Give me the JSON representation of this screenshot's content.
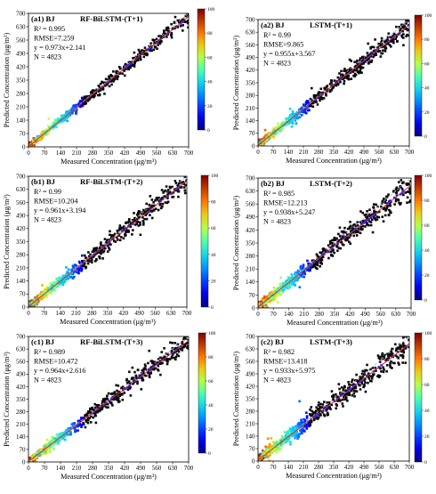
{
  "figure": {
    "axes_common": {
      "xlabel": "Measured Concentration (μg/m³)",
      "ylabel": "Predicted Concentration (μg/m³)",
      "xlim": [
        0,
        700
      ],
      "ylim": [
        0,
        700
      ],
      "ticks": [
        "0",
        "70",
        "140",
        "210",
        "280",
        "350",
        "420",
        "490",
        "560",
        "630",
        "700"
      ],
      "colorbar_range": [
        0,
        100
      ],
      "colorbar_ticks": [
        "0",
        "20",
        "40",
        "60",
        "80",
        "100"
      ],
      "fit_line_color": "#d62728",
      "identity_line_color": "#aaaaaa"
    }
  },
  "chart_data": [
    {
      "type": "scatter",
      "panel_label": "(a1) BJ",
      "model": "RF-BiLSTM-(T+1)",
      "r2": "R² = 0.995",
      "rmse": "RMSE=7.259",
      "fit": "y = 0.973x+2.141",
      "n": "N = 4823",
      "slope": 0.973,
      "intercept": 2.141,
      "scatter": 10,
      "xlim": [
        0,
        700
      ],
      "ylim": [
        0,
        700
      ]
    },
    {
      "type": "scatter",
      "panel_label": "(a2) BJ",
      "model": "LSTM-(T+1)",
      "r2": "R² = 0.99",
      "rmse": "RMSE=9.865",
      "fit": "y = 0.955x+3.567",
      "n": "N = 4823",
      "slope": 0.955,
      "intercept": 3.567,
      "scatter": 14,
      "xlim": [
        0,
        700
      ],
      "ylim": [
        0,
        700
      ]
    },
    {
      "type": "scatter",
      "panel_label": "(b1) BJ",
      "model": "RF-BiLSTM-(T+2)",
      "r2": "R² = 0.99",
      "rmse": "RMSE=10.204",
      "fit": "y = 0.961x+3.194",
      "n": "N = 4823",
      "slope": 0.961,
      "intercept": 3.194,
      "scatter": 15,
      "xlim": [
        0,
        700
      ],
      "ylim": [
        0,
        700
      ]
    },
    {
      "type": "scatter",
      "panel_label": "(b2) BJ",
      "model": "LSTM-(T+2)",
      "r2": "R² = 0.985",
      "rmse": "RMSE=12.213",
      "fit": "y = 0.938x+5.247",
      "n": "N = 4823",
      "slope": 0.938,
      "intercept": 5.247,
      "scatter": 18,
      "xlim": [
        0,
        700
      ],
      "ylim": [
        0,
        700
      ]
    },
    {
      "type": "scatter",
      "panel_label": "(c1) BJ",
      "model": "RF-BiLSTM-(T+3)",
      "r2": "R² = 0.989",
      "rmse": "RMSE=10.472",
      "fit": "y = 0.964x+2.616",
      "n": "N = 4823",
      "slope": 0.964,
      "intercept": 2.616,
      "scatter": 15,
      "xlim": [
        0,
        700
      ],
      "ylim": [
        0,
        700
      ]
    },
    {
      "type": "scatter",
      "panel_label": "(c2) BJ",
      "model": "LSTM-(T+3)",
      "r2": "R² = 0.982",
      "rmse": "RMSE=13.418",
      "fit": "y = 0.933x+5.975",
      "n": "N = 4823",
      "slope": 0.933,
      "intercept": 5.975,
      "scatter": 20,
      "xlim": [
        0,
        700
      ],
      "ylim": [
        0,
        700
      ]
    }
  ]
}
